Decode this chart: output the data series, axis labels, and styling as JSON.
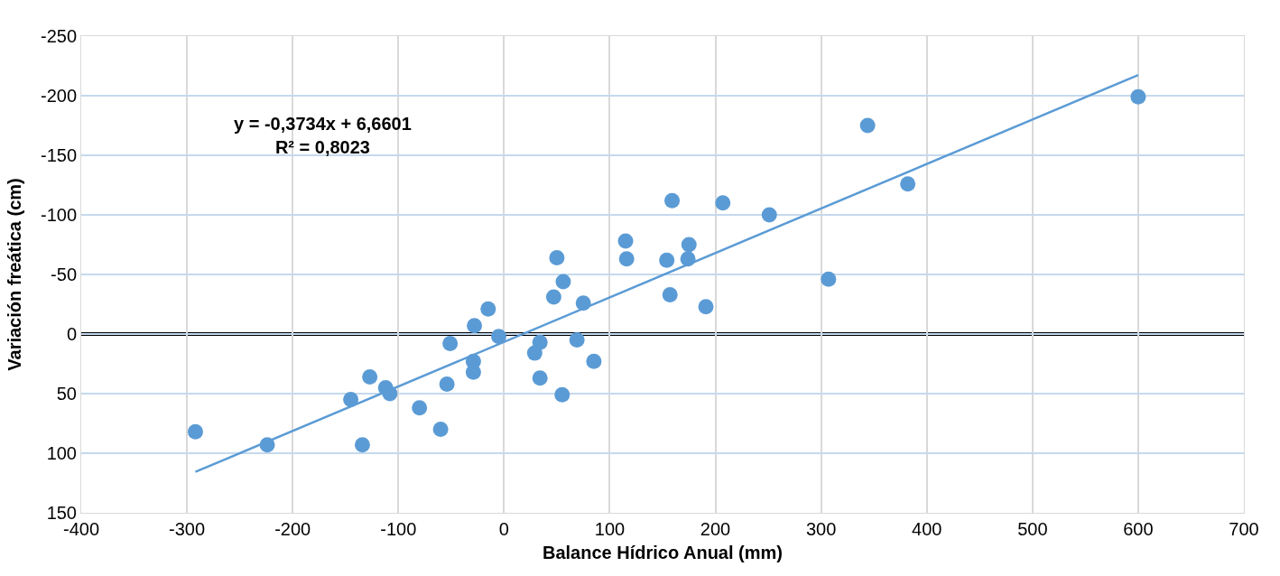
{
  "chart_data": {
    "type": "scatter",
    "xlabel": "Balance Hídrico Anual (mm)",
    "ylabel": "Variación freática (cm)",
    "annotations": [
      "y = -0,3734x + 6,6601\nR² = 0,8023"
    ],
    "xlim": [
      -400,
      700
    ],
    "xticks": [
      -400,
      -300,
      -200,
      -100,
      0,
      100,
      200,
      300,
      400,
      500,
      600,
      700
    ],
    "ylim": [
      150,
      -250
    ],
    "yticks": [
      -250,
      -200,
      -150,
      -100,
      -50,
      0,
      50,
      100,
      150
    ],
    "grid": true,
    "ref_lines": [
      {
        "axis": "y",
        "value": 0,
        "color": "#000000"
      }
    ],
    "series": [
      {
        "marker": "circle",
        "color": "#5b9bd5",
        "x": [
          -292,
          -224,
          -145,
          -134,
          -127,
          -112,
          -108,
          -80,
          -60,
          -54,
          -51,
          -29,
          -29,
          -28,
          -15,
          -5,
          29,
          34,
          34,
          55,
          47,
          50,
          56,
          69,
          75,
          85,
          115,
          116,
          154,
          157,
          159,
          175,
          174,
          191,
          207,
          251,
          307,
          344,
          382,
          600
        ],
        "values": [
          82,
          93,
          55,
          93,
          36,
          45,
          50,
          62,
          80,
          42,
          8,
          23,
          32,
          -7,
          -21,
          2,
          16,
          7,
          37,
          51,
          -31,
          -64,
          -44,
          5,
          -26,
          23,
          -78,
          -63,
          -62,
          -33,
          -112,
          -75,
          -63,
          -23,
          -110,
          -100,
          -46,
          -175,
          -126,
          -199
        ]
      },
      {
        "type": "line",
        "color": "#5b9bd5",
        "x": [
          -292,
          600
        ],
        "values": [
          115.7,
          -217.4
        ],
        "line_style": "solid"
      }
    ]
  }
}
